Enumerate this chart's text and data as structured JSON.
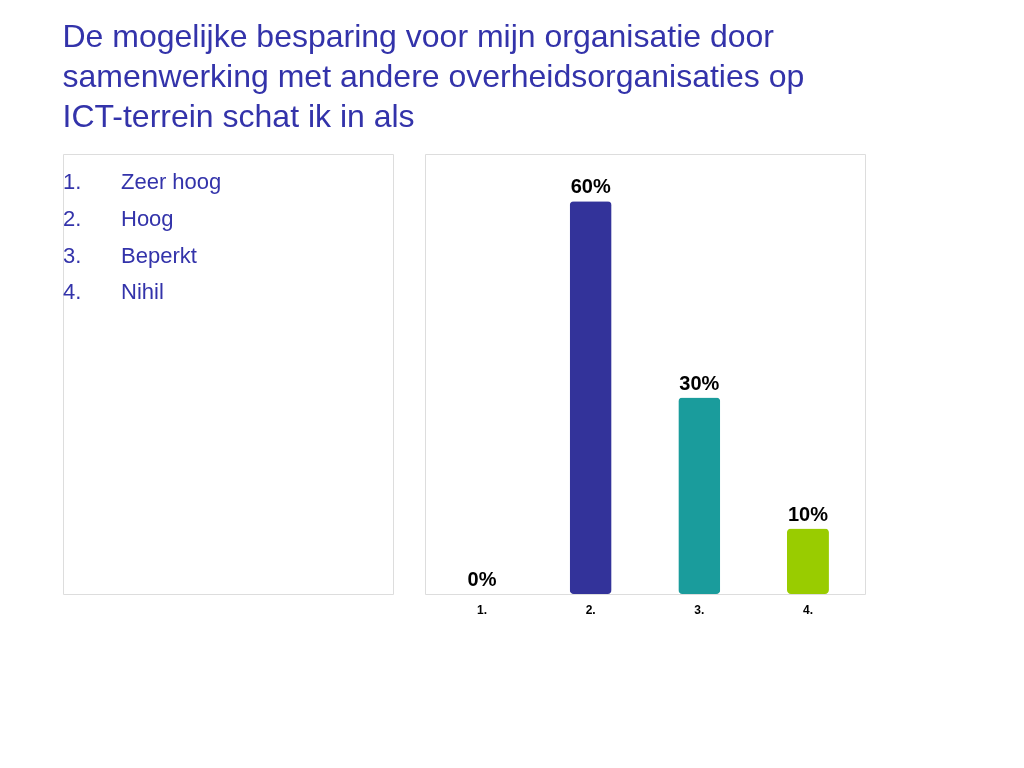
{
  "chart_data": {
    "type": "bar",
    "title": "De mogelijke besparing voor mijn organisatie door samenwerking met andere overheidsorganisaties op ICT-terrein schat ik in als",
    "annotations": [
      "1. Zeer hoog",
      "2. Hoog",
      "3. Beperkt",
      "4. Nihil"
    ],
    "categories": [
      "1.",
      "2.",
      "3.",
      "4."
    ],
    "values": [
      0,
      60,
      30,
      10
    ],
    "colors": [
      "#a6c4cc",
      "#33339a",
      "#1a9c9c",
      "#99cc00"
    ],
    "value_labels": [
      "0%",
      "60%",
      "30%",
      "10%"
    ],
    "grid": false
  }
}
